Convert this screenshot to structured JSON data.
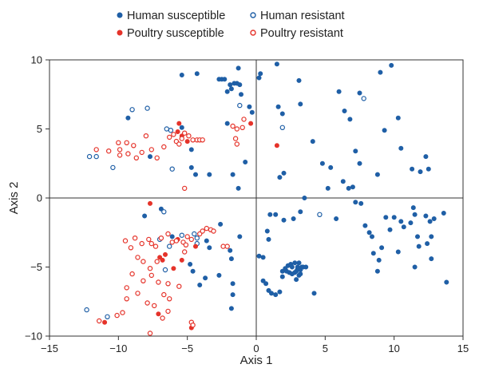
{
  "chart_data": {
    "type": "scatter",
    "xlabel": "Axis 1",
    "ylabel": "Axis 2",
    "xlim": [
      -15,
      15
    ],
    "ylim": [
      -10,
      10
    ],
    "xticks": [
      -15,
      -10,
      -5,
      0,
      5,
      10,
      15
    ],
    "yticks": [
      -10,
      -5,
      0,
      5,
      10
    ],
    "zero_lines": true,
    "grid": false,
    "legend_position": "top",
    "series": [
      {
        "name": "Human susceptible",
        "color": "#1f5fa6",
        "marker": "filled-circle",
        "points": [
          [
            -9.3,
            5.8
          ],
          [
            -7.7,
            3.0
          ],
          [
            -5.4,
            5.1
          ],
          [
            -4.7,
            3.5
          ],
          [
            -4.7,
            2.2
          ],
          [
            -4.4,
            1.7
          ],
          [
            -3.4,
            1.7
          ],
          [
            -2.6,
            -1.9
          ],
          [
            -2.1,
            5.4
          ],
          [
            -5.4,
            8.9
          ],
          [
            -4.3,
            9.0
          ],
          [
            -2.7,
            8.6
          ],
          [
            -2.5,
            8.6
          ],
          [
            -2.3,
            8.6
          ],
          [
            -2.1,
            7.7
          ],
          [
            -1.9,
            8.2
          ],
          [
            -1.6,
            8.3
          ],
          [
            -1.4,
            8.3
          ],
          [
            -1.2,
            8.2
          ],
          [
            -1.8,
            7.9
          ],
          [
            -1.1,
            7.5
          ],
          [
            -1.3,
            9.4
          ],
          [
            -0.5,
            6.6
          ],
          [
            -0.3,
            6.2
          ],
          [
            0.2,
            8.7
          ],
          [
            0.3,
            9.0
          ],
          [
            1.5,
            9.7
          ],
          [
            1.6,
            6.6
          ],
          [
            1.9,
            6.1
          ],
          [
            1.7,
            1.5
          ],
          [
            2.0,
            1.8
          ],
          [
            -0.8,
            2.6
          ],
          [
            -1.7,
            1.7
          ],
          [
            -1.3,
            0.7
          ],
          [
            3.1,
            8.5
          ],
          [
            3.2,
            6.8
          ],
          [
            3.5,
            0.0
          ],
          [
            3.2,
            -1.0
          ],
          [
            2.7,
            -1.5
          ],
          [
            2.0,
            -1.6
          ],
          [
            1.4,
            -1.2
          ],
          [
            1.0,
            -1.2
          ],
          [
            0.8,
            -2.4
          ],
          [
            0.9,
            -3.0
          ],
          [
            0.2,
            -4.2
          ],
          [
            0.5,
            -4.3
          ],
          [
            -1.2,
            -2.8
          ],
          [
            -1.9,
            -3.8
          ],
          [
            -1.8,
            -4.4
          ],
          [
            -3.6,
            -3.1
          ],
          [
            -3.4,
            -3.6
          ],
          [
            -4.6,
            -5.3
          ],
          [
            -4.8,
            -4.8
          ],
          [
            -6.1,
            -2.8
          ],
          [
            -8.1,
            -1.3
          ],
          [
            -6.9,
            -0.8
          ],
          [
            -2.7,
            -5.6
          ],
          [
            -3.7,
            -5.8
          ],
          [
            -4.1,
            -6.3
          ],
          [
            -1.7,
            -6.2
          ],
          [
            -1.7,
            -7.0
          ],
          [
            -1.8,
            -8.0
          ],
          [
            0.5,
            -6.0
          ],
          [
            0.7,
            -6.2
          ],
          [
            0.9,
            -6.7
          ],
          [
            1.1,
            -6.9
          ],
          [
            1.4,
            -7.0
          ],
          [
            1.7,
            -6.8
          ],
          [
            1.9,
            -5.7
          ],
          [
            1.9,
            -5.3
          ],
          [
            2.1,
            -5.1
          ],
          [
            2.3,
            -4.9
          ],
          [
            2.5,
            -4.8
          ],
          [
            2.6,
            -5.0
          ],
          [
            2.8,
            -4.7
          ],
          [
            2.9,
            -5.3
          ],
          [
            3.0,
            -5.1
          ],
          [
            3.1,
            -4.7
          ],
          [
            3.2,
            -5.2
          ],
          [
            3.3,
            -5.0
          ],
          [
            2.6,
            -5.5
          ],
          [
            2.9,
            -5.9
          ],
          [
            3.1,
            -5.6
          ],
          [
            3.4,
            -5.0
          ],
          [
            3.6,
            -5.0
          ],
          [
            2.4,
            -5.4
          ],
          [
            2.8,
            -5.4
          ],
          [
            3.2,
            -5.5
          ],
          [
            2.2,
            -5.3
          ],
          [
            3.0,
            -5.0
          ],
          [
            4.1,
            4.1
          ],
          [
            4.2,
            -6.9
          ],
          [
            4.8,
            2.5
          ],
          [
            5.2,
            0.7
          ],
          [
            5.4,
            2.2
          ],
          [
            5.8,
            -1.5
          ],
          [
            6.0,
            7.7
          ],
          [
            6.4,
            6.3
          ],
          [
            6.8,
            5.7
          ],
          [
            6.3,
            1.2
          ],
          [
            6.7,
            0.7
          ],
          [
            7.0,
            0.8
          ],
          [
            7.2,
            -0.3
          ],
          [
            7.5,
            7.6
          ],
          [
            7.2,
            3.4
          ],
          [
            7.5,
            2.5
          ],
          [
            7.6,
            -0.4
          ],
          [
            7.9,
            -2.0
          ],
          [
            8.2,
            -2.5
          ],
          [
            8.4,
            -2.8
          ],
          [
            8.8,
            1.7
          ],
          [
            9.0,
            9.1
          ],
          [
            9.3,
            4.9
          ],
          [
            8.5,
            -4.0
          ],
          [
            8.9,
            -4.5
          ],
          [
            8.8,
            -5.3
          ],
          [
            9.1,
            -3.6
          ],
          [
            9.4,
            -1.4
          ],
          [
            9.7,
            -2.3
          ],
          [
            9.8,
            9.6
          ],
          [
            10.3,
            5.8
          ],
          [
            10.5,
            3.6
          ],
          [
            10.0,
            -1.4
          ],
          [
            10.3,
            -3.9
          ],
          [
            10.5,
            -1.7
          ],
          [
            10.7,
            -2.1
          ],
          [
            11.2,
            -1.8
          ],
          [
            11.4,
            -0.7
          ],
          [
            11.5,
            -1.2
          ],
          [
            11.7,
            -2.8
          ],
          [
            11.8,
            -3.5
          ],
          [
            11.3,
            2.1
          ],
          [
            11.9,
            1.9
          ],
          [
            12.3,
            3.0
          ],
          [
            12.5,
            2.1
          ],
          [
            12.3,
            -1.3
          ],
          [
            12.4,
            -3.3
          ],
          [
            12.6,
            -1.7
          ],
          [
            12.7,
            -2.8
          ],
          [
            12.9,
            -1.5
          ],
          [
            13.6,
            -1.1
          ],
          [
            13.8,
            -6.1
          ],
          [
            12.7,
            -4.4
          ],
          [
            11.5,
            -5.0
          ]
        ]
      },
      {
        "name": "Human resistant",
        "color": "#1f5fa6",
        "marker": "open-circle",
        "points": [
          [
            -9.0,
            6.4
          ],
          [
            -7.9,
            6.5
          ],
          [
            -12.1,
            3.0
          ],
          [
            -11.6,
            3.0
          ],
          [
            -10.4,
            2.2
          ],
          [
            -6.5,
            5.0
          ],
          [
            -6.2,
            4.9
          ],
          [
            -6.1,
            2.1
          ],
          [
            -1.2,
            6.7
          ],
          [
            -5.4,
            -2.7
          ],
          [
            -4.5,
            -2.6
          ],
          [
            -4.3,
            -2.9
          ],
          [
            -4.3,
            -3.3
          ],
          [
            -6.3,
            -3.5
          ],
          [
            -6.6,
            -5.2
          ],
          [
            -6.7,
            -1.0
          ],
          [
            -7.0,
            -3.0
          ],
          [
            -10.8,
            -8.6
          ],
          [
            -12.3,
            -8.1
          ],
          [
            1.9,
            5.1
          ],
          [
            7.8,
            7.2
          ],
          [
            4.6,
            -1.2
          ]
        ]
      },
      {
        "name": "Poultry susceptible",
        "color": "#e5332a",
        "marker": "filled-circle",
        "points": [
          [
            -5.6,
            5.4
          ],
          [
            -5.7,
            4.8
          ],
          [
            -5.4,
            4.5
          ],
          [
            -5.0,
            4.1
          ],
          [
            -0.4,
            5.4
          ],
          [
            1.5,
            3.8
          ],
          [
            -7.7,
            -0.4
          ],
          [
            -7.0,
            -4.3
          ],
          [
            -6.8,
            -4.5
          ],
          [
            -5.7,
            -3.0
          ],
          [
            -5.4,
            -4.5
          ],
          [
            -6.0,
            -5.1
          ],
          [
            -6.6,
            -4.1
          ],
          [
            -7.1,
            -8.4
          ],
          [
            -11.0,
            -9.0
          ],
          [
            -4.7,
            -9.4
          ],
          [
            -4.4,
            -3.5
          ]
        ]
      },
      {
        "name": "Poultry resistant",
        "color": "#e5332a",
        "marker": "open-circle",
        "points": [
          [
            -11.6,
            3.5
          ],
          [
            -10.7,
            3.4
          ],
          [
            -10.0,
            4.0
          ],
          [
            -9.9,
            3.5
          ],
          [
            -9.9,
            3.1
          ],
          [
            -9.4,
            4.0
          ],
          [
            -9.3,
            3.2
          ],
          [
            -8.9,
            3.8
          ],
          [
            -8.7,
            2.9
          ],
          [
            -8.3,
            3.3
          ],
          [
            -8.0,
            4.5
          ],
          [
            -7.6,
            3.5
          ],
          [
            -7.2,
            2.9
          ],
          [
            -6.7,
            3.7
          ],
          [
            -6.3,
            4.4
          ],
          [
            -6.0,
            4.6
          ],
          [
            -5.8,
            4.1
          ],
          [
            -5.6,
            3.9
          ],
          [
            -5.4,
            4.3
          ],
          [
            -5.2,
            4.7
          ],
          [
            -4.9,
            4.5
          ],
          [
            -4.6,
            4.2
          ],
          [
            -4.3,
            4.2
          ],
          [
            -4.1,
            4.2
          ],
          [
            -3.9,
            4.2
          ],
          [
            -1.7,
            5.2
          ],
          [
            -1.4,
            5.0
          ],
          [
            -1.0,
            5.1
          ],
          [
            -0.9,
            5.7
          ],
          [
            -1.5,
            4.3
          ],
          [
            -1.4,
            3.9
          ],
          [
            -5.2,
            0.7
          ],
          [
            -9.5,
            -3.1
          ],
          [
            -8.8,
            -2.9
          ],
          [
            -8.3,
            -3.3
          ],
          [
            -7.8,
            -3.0
          ],
          [
            -7.6,
            -3.3
          ],
          [
            -9.1,
            -3.6
          ],
          [
            -8.6,
            -4.3
          ],
          [
            -8.2,
            -4.6
          ],
          [
            -7.7,
            -5.1
          ],
          [
            -7.2,
            -4.6
          ],
          [
            -7.3,
            -3.5
          ],
          [
            -6.9,
            -2.9
          ],
          [
            -6.4,
            -2.6
          ],
          [
            -6.1,
            -3.2
          ],
          [
            -5.8,
            -3.1
          ],
          [
            -5.3,
            -3.2
          ],
          [
            -5.0,
            -2.8
          ],
          [
            -4.7,
            -3.0
          ],
          [
            -4.1,
            -2.6
          ],
          [
            -3.9,
            -2.4
          ],
          [
            -3.6,
            -2.2
          ],
          [
            -3.3,
            -2.3
          ],
          [
            -3.1,
            -2.4
          ],
          [
            -2.4,
            -3.5
          ],
          [
            -2.1,
            -3.5
          ],
          [
            -9.0,
            -5.5
          ],
          [
            -8.2,
            -6.0
          ],
          [
            -7.6,
            -5.6
          ],
          [
            -7.1,
            -6.1
          ],
          [
            -9.4,
            -6.5
          ],
          [
            -8.6,
            -6.9
          ],
          [
            -7.9,
            -7.6
          ],
          [
            -7.4,
            -7.8
          ],
          [
            -6.4,
            -6.2
          ],
          [
            -6.7,
            -7.0
          ],
          [
            -6.3,
            -7.3
          ],
          [
            -5.6,
            -6.4
          ],
          [
            -9.4,
            -7.3
          ],
          [
            -9.7,
            -8.3
          ],
          [
            -10.1,
            -8.5
          ],
          [
            -11.4,
            -8.9
          ],
          [
            -7.7,
            -9.8
          ],
          [
            -6.8,
            -8.7
          ],
          [
            -6.4,
            -8.2
          ],
          [
            -4.7,
            -9.0
          ],
          [
            -4.6,
            -9.2
          ],
          [
            -5.2,
            -3.9
          ],
          [
            -5.1,
            -3.4
          ]
        ]
      }
    ]
  }
}
